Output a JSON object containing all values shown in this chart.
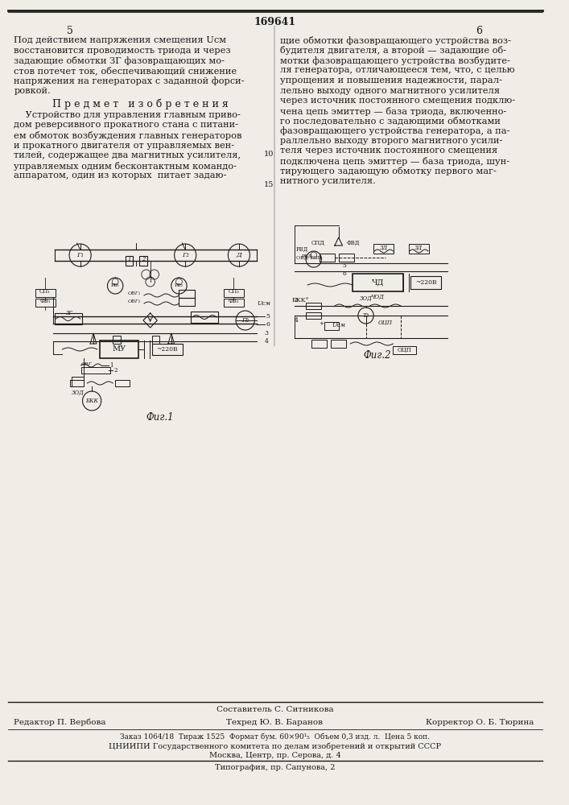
{
  "page_number": "169641",
  "col_left": "5",
  "col_right": "6",
  "bg_color": "#f0ede6",
  "text_color": "#1a1a1a",
  "left_text": [
    "Под действием напряжения смещения Uсм",
    "восстановится проводимость триода и через",
    "задающие обмотки ЗГ фазовращающих мо-",
    "стов потечет ток, обеспечивающий снижение",
    "напряжения на генераторах с заданной форси-",
    "ровкой."
  ],
  "section_title": "П р е д м е т   и з о б р е т е н и я",
  "claim_text": [
    "    Устройство для управления главным приво-",
    "дом реверсивного прокатного стана с питани-",
    "ем обмоток возбуждения главных генераторов",
    "и прокатного двигателя от управляемых вен-",
    "тилей, содержащее два магнитных усилителя,",
    "управляемых одним бесконтактным командо-",
    "аппаратом, один из которых  питает задаю-"
  ],
  "right_text": [
    "щие обмотки фазовращающего устройства воз-",
    "будителя двигателя, а второй — задающие об-",
    "мотки фазовращающего устройства возбудите-",
    "ля генератора, отличающееся тем, что, с целью",
    "упрощения и повышения надежности, парал-",
    "лельно выходу одного магнитного усилителя",
    "через источник постоянного смещения подклю-",
    "чена цепь эмиттер — база триода, включенно-",
    "го последовательно с задающими обмотками",
    "фазовращающего устройства генератора, а па-",
    "раллельно выходу второго магнитного усили-",
    "теля через источник постоянного смещения",
    "подключена цепь эмиттер — база триода, шун-",
    "тирующего задающую обмотку первого маг-",
    "нитного усилителя."
  ],
  "fig1_label": "Фиг.1",
  "fig2_label": "Фиг.2",
  "footer_line1": "Составитель С. Ситникова",
  "footer_editor": "Редактор П. Вербова",
  "footer_tech": "Техред Ю. В. Баранов",
  "footer_corrector": "Корректор О. Б. Тюрина",
  "footer_info": "Заказ 1064/18  Тираж 1525  Формат бум. 60×90¹₅  Объем 0,3 изд. л.  Цена 5 коп.",
  "footer_org": "ЦНИИПИ Государственного комитета по делам изобретений и открытий СССР",
  "footer_addr1": "Москва, Центр, пр. Серова, д. 4",
  "footer_print": "Типография, пр. Сапунова, 2"
}
